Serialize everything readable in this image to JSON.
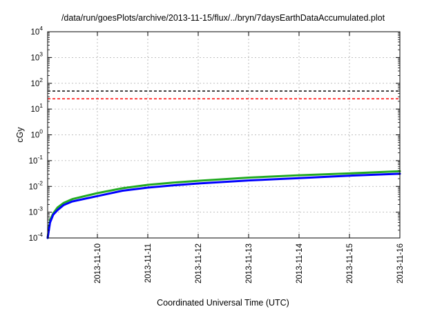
{
  "chart_data": {
    "type": "line",
    "title": "/data/run/goesPlots/archive/2013-11-15/flux/../bryn/7daysEarthDataAccumulated.plot",
    "xlabel": "Coordinated Universal Time (UTC)",
    "ylabel": "cGy",
    "yscale": "log",
    "ylim": [
      0.0001,
      10000
    ],
    "y_ticks": [
      {
        "base": "10",
        "exp": "-4",
        "value": 0.0001
      },
      {
        "base": "10",
        "exp": "-3",
        "value": 0.001
      },
      {
        "base": "10",
        "exp": "-2",
        "value": 0.01
      },
      {
        "base": "10",
        "exp": "-1",
        "value": 0.1
      },
      {
        "base": "10",
        "exp": "0",
        "value": 1
      },
      {
        "base": "10",
        "exp": "1",
        "value": 10
      },
      {
        "base": "10",
        "exp": "2",
        "value": 100
      },
      {
        "base": "10",
        "exp": "3",
        "value": 1000
      },
      {
        "base": "10",
        "exp": "4",
        "value": 10000
      }
    ],
    "xlim": [
      "2013-11-09 00:20",
      "2013-11-16 00:00"
    ],
    "x_ticks": [
      "2013-11-10",
      "2013-11-11",
      "2013-11-12",
      "2013-11-13",
      "2013-11-14",
      "2013-11-15",
      "2013-11-16"
    ],
    "grid": true,
    "thresholds": [
      {
        "value": 50,
        "color": "#000000",
        "style": "dashed"
      },
      {
        "value": 25,
        "color": "#ff0000",
        "style": "dashed"
      }
    ],
    "series": [
      {
        "color": "#22aa22",
        "x": [
          "2013-11-09 00:20",
          "2013-11-09 01:30",
          "2013-11-09 03:00",
          "2013-11-09 05:00",
          "2013-11-09 08:00",
          "2013-11-09 12:00",
          "2013-11-10 00:00",
          "2013-11-10 12:00",
          "2013-11-11 00:00",
          "2013-11-11 12:00",
          "2013-11-12 00:00",
          "2013-11-13 00:00",
          "2013-11-14 00:00",
          "2013-11-15 00:00",
          "2013-11-16 00:00"
        ],
        "values": [
          0.0001,
          0.0005,
          0.0009,
          0.0015,
          0.0023,
          0.0032,
          0.0055,
          0.0085,
          0.0115,
          0.014,
          0.0165,
          0.022,
          0.027,
          0.032,
          0.039
        ]
      },
      {
        "color": "#0000ff",
        "x": [
          "2013-11-09 00:20",
          "2013-11-09 01:30",
          "2013-11-09 03:00",
          "2013-11-09 05:00",
          "2013-11-09 08:00",
          "2013-11-09 12:00",
          "2013-11-10 00:00",
          "2013-11-10 12:00",
          "2013-11-11 00:00",
          "2013-11-11 12:00",
          "2013-11-12 00:00",
          "2013-11-13 00:00",
          "2013-11-14 00:00",
          "2013-11-15 00:00",
          "2013-11-16 00:00"
        ],
        "values": [
          0.0001,
          0.0004,
          0.0008,
          0.0012,
          0.0019,
          0.0026,
          0.0042,
          0.0068,
          0.009,
          0.011,
          0.013,
          0.017,
          0.021,
          0.026,
          0.031
        ]
      }
    ]
  }
}
